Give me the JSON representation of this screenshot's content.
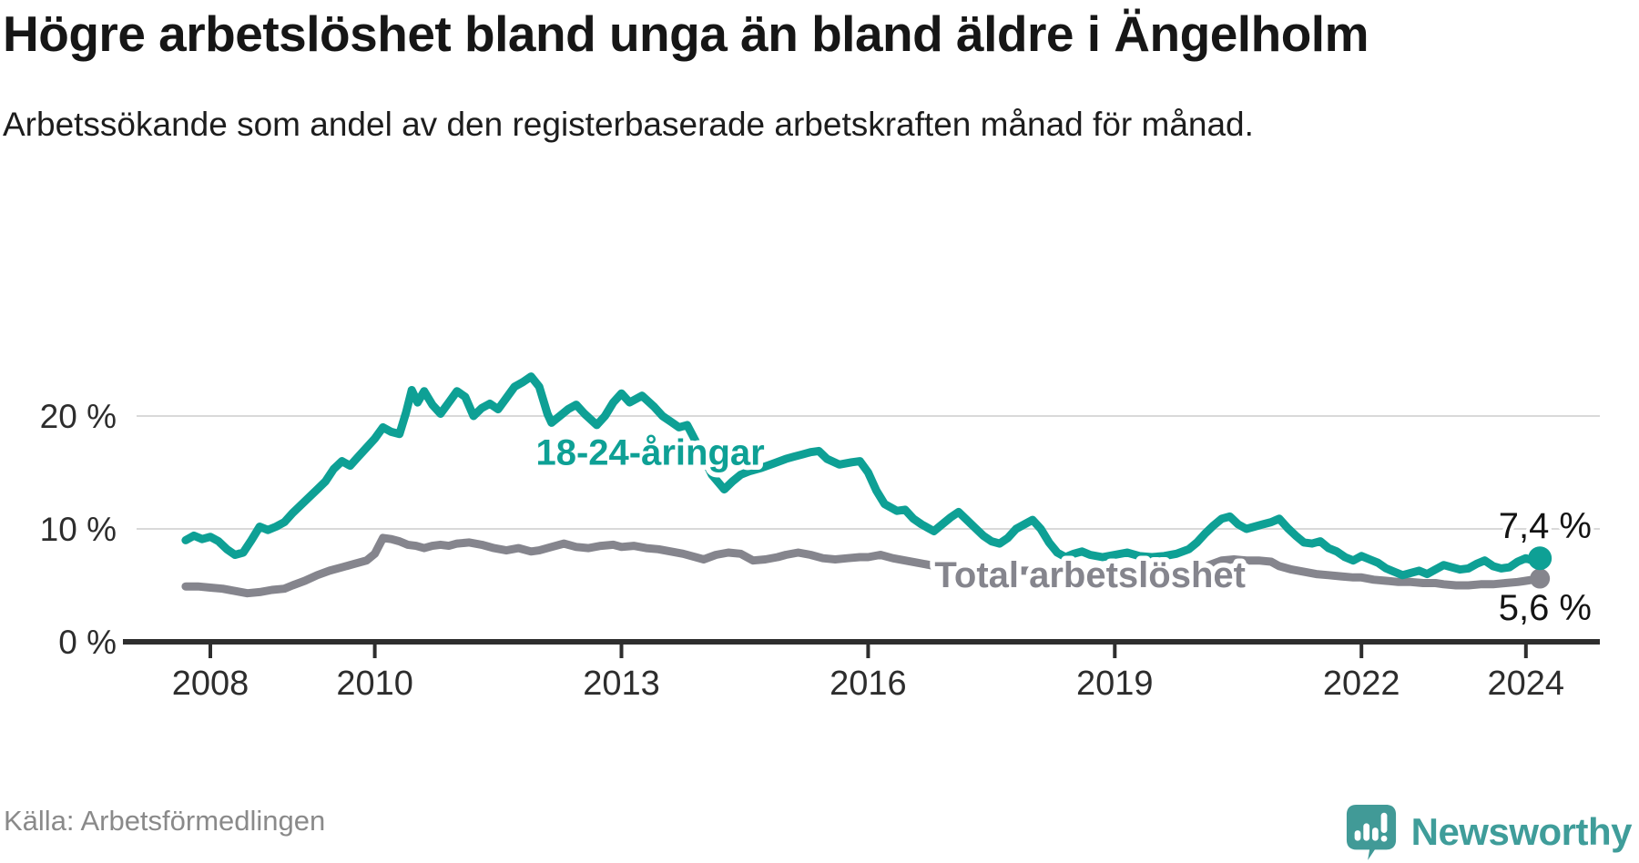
{
  "chart_data": {
    "type": "line",
    "title": "Högre arbetslöshet bland unga än bland äldre i Ängelholm",
    "subtitle": "Arbetssökande som andel av den registerbaserade arbetskraften månad för månad.",
    "source": "Källa: Arbetsförmedlingen",
    "unit": "%",
    "grid": true,
    "legend_position": "inline-labels",
    "xlim": [
      2007.6,
      2024.9
    ],
    "ylim": [
      0,
      24
    ],
    "x_axis": {
      "ticks": [
        {
          "value": 2008,
          "label": "2008"
        },
        {
          "value": 2010,
          "label": "2010"
        },
        {
          "value": 2013,
          "label": "2013"
        },
        {
          "value": 2016,
          "label": "2016"
        },
        {
          "value": 2019,
          "label": "2019"
        },
        {
          "value": 2022,
          "label": "2022"
        },
        {
          "value": 2024,
          "label": "2024"
        }
      ]
    },
    "y_axis": {
      "ticks": [
        {
          "value": 0,
          "label": "0 %"
        },
        {
          "value": 10,
          "label": "10 %"
        },
        {
          "value": 20,
          "label": "20 %"
        }
      ]
    },
    "series": [
      {
        "key": "young",
        "name": "18-24-åringar",
        "color": "#0ea095",
        "end_label": "7,4 %",
        "end_value": 7.4,
        "points": [
          [
            2007.7,
            9.0
          ],
          [
            2007.8,
            9.4
          ],
          [
            2007.9,
            9.1
          ],
          [
            2008.0,
            9.3
          ],
          [
            2008.1,
            8.9
          ],
          [
            2008.2,
            8.2
          ],
          [
            2008.3,
            7.7
          ],
          [
            2008.4,
            7.9
          ],
          [
            2008.5,
            9.0
          ],
          [
            2008.6,
            10.2
          ],
          [
            2008.7,
            9.9
          ],
          [
            2008.8,
            10.2
          ],
          [
            2008.9,
            10.6
          ],
          [
            2009.0,
            11.4
          ],
          [
            2009.1,
            12.1
          ],
          [
            2009.2,
            12.8
          ],
          [
            2009.3,
            13.5
          ],
          [
            2009.4,
            14.2
          ],
          [
            2009.5,
            15.3
          ],
          [
            2009.6,
            16.0
          ],
          [
            2009.7,
            15.6
          ],
          [
            2009.8,
            16.4
          ],
          [
            2009.9,
            17.2
          ],
          [
            2010.0,
            18.0
          ],
          [
            2010.1,
            19.0
          ],
          [
            2010.2,
            18.6
          ],
          [
            2010.3,
            18.4
          ],
          [
            2010.38,
            20.3
          ],
          [
            2010.45,
            22.3
          ],
          [
            2010.52,
            21.2
          ],
          [
            2010.6,
            22.2
          ],
          [
            2010.7,
            21.0
          ],
          [
            2010.8,
            20.2
          ],
          [
            2010.9,
            21.2
          ],
          [
            2011.0,
            22.2
          ],
          [
            2011.1,
            21.7
          ],
          [
            2011.2,
            20.0
          ],
          [
            2011.3,
            20.7
          ],
          [
            2011.4,
            21.1
          ],
          [
            2011.5,
            20.6
          ],
          [
            2011.6,
            21.6
          ],
          [
            2011.7,
            22.6
          ],
          [
            2011.8,
            23.0
          ],
          [
            2011.9,
            23.5
          ],
          [
            2012.0,
            22.6
          ],
          [
            2012.1,
            20.2
          ],
          [
            2012.15,
            19.4
          ],
          [
            2012.25,
            20.0
          ],
          [
            2012.35,
            20.6
          ],
          [
            2012.45,
            21.0
          ],
          [
            2012.55,
            20.2
          ],
          [
            2012.7,
            19.2
          ],
          [
            2012.8,
            20.0
          ],
          [
            2012.9,
            21.2
          ],
          [
            2013.0,
            22.0
          ],
          [
            2013.1,
            21.2
          ],
          [
            2013.25,
            21.8
          ],
          [
            2013.4,
            20.8
          ],
          [
            2013.5,
            20.0
          ],
          [
            2013.6,
            19.5
          ],
          [
            2013.7,
            19.0
          ],
          [
            2013.8,
            19.2
          ],
          [
            2013.9,
            17.8
          ],
          [
            2014.0,
            16.3
          ],
          [
            2014.1,
            14.8
          ],
          [
            2014.25,
            13.5
          ],
          [
            2014.35,
            14.2
          ],
          [
            2014.45,
            14.8
          ],
          [
            2014.55,
            15.1
          ],
          [
            2014.7,
            15.4
          ],
          [
            2014.85,
            15.8
          ],
          [
            2015.0,
            16.2
          ],
          [
            2015.1,
            16.4
          ],
          [
            2015.2,
            16.6
          ],
          [
            2015.3,
            16.8
          ],
          [
            2015.4,
            16.9
          ],
          [
            2015.5,
            16.2
          ],
          [
            2015.65,
            15.7
          ],
          [
            2015.8,
            15.9
          ],
          [
            2015.9,
            16.0
          ],
          [
            2016.0,
            15.0
          ],
          [
            2016.1,
            13.4
          ],
          [
            2016.2,
            12.2
          ],
          [
            2016.35,
            11.6
          ],
          [
            2016.45,
            11.7
          ],
          [
            2016.55,
            10.9
          ],
          [
            2016.65,
            10.4
          ],
          [
            2016.8,
            9.8
          ],
          [
            2016.9,
            10.4
          ],
          [
            2017.0,
            11.0
          ],
          [
            2017.1,
            11.5
          ],
          [
            2017.2,
            10.8
          ],
          [
            2017.3,
            10.1
          ],
          [
            2017.4,
            9.4
          ],
          [
            2017.5,
            8.9
          ],
          [
            2017.6,
            8.7
          ],
          [
            2017.7,
            9.2
          ],
          [
            2017.8,
            10.0
          ],
          [
            2017.9,
            10.4
          ],
          [
            2018.0,
            10.8
          ],
          [
            2018.1,
            10.0
          ],
          [
            2018.2,
            8.8
          ],
          [
            2018.3,
            7.9
          ],
          [
            2018.4,
            7.5
          ],
          [
            2018.5,
            7.8
          ],
          [
            2018.6,
            8.0
          ],
          [
            2018.7,
            7.7
          ],
          [
            2018.85,
            7.5
          ],
          [
            2019.0,
            7.7
          ],
          [
            2019.15,
            7.9
          ],
          [
            2019.3,
            7.6
          ],
          [
            2019.45,
            7.5
          ],
          [
            2019.6,
            7.6
          ],
          [
            2019.75,
            7.8
          ],
          [
            2019.9,
            8.2
          ],
          [
            2020.0,
            8.8
          ],
          [
            2020.1,
            9.6
          ],
          [
            2020.2,
            10.3
          ],
          [
            2020.3,
            10.9
          ],
          [
            2020.4,
            11.1
          ],
          [
            2020.5,
            10.4
          ],
          [
            2020.6,
            10.0
          ],
          [
            2020.7,
            10.2
          ],
          [
            2020.8,
            10.4
          ],
          [
            2020.9,
            10.6
          ],
          [
            2021.0,
            10.9
          ],
          [
            2021.1,
            10.1
          ],
          [
            2021.2,
            9.4
          ],
          [
            2021.3,
            8.8
          ],
          [
            2021.4,
            8.7
          ],
          [
            2021.5,
            8.9
          ],
          [
            2021.6,
            8.3
          ],
          [
            2021.7,
            8.0
          ],
          [
            2021.8,
            7.5
          ],
          [
            2021.9,
            7.2
          ],
          [
            2022.0,
            7.6
          ],
          [
            2022.1,
            7.3
          ],
          [
            2022.2,
            7.0
          ],
          [
            2022.3,
            6.5
          ],
          [
            2022.4,
            6.2
          ],
          [
            2022.5,
            5.9
          ],
          [
            2022.6,
            6.1
          ],
          [
            2022.7,
            6.3
          ],
          [
            2022.8,
            6.0
          ],
          [
            2022.9,
            6.4
          ],
          [
            2023.0,
            6.8
          ],
          [
            2023.1,
            6.6
          ],
          [
            2023.2,
            6.4
          ],
          [
            2023.3,
            6.5
          ],
          [
            2023.4,
            6.9
          ],
          [
            2023.5,
            7.2
          ],
          [
            2023.6,
            6.7
          ],
          [
            2023.7,
            6.5
          ],
          [
            2023.8,
            6.6
          ],
          [
            2023.9,
            7.1
          ],
          [
            2024.0,
            7.4
          ],
          [
            2024.08,
            7.2
          ],
          [
            2024.17,
            7.4
          ]
        ]
      },
      {
        "key": "total",
        "name": "Total arbetslöshet",
        "color": "#85858d",
        "end_label": "5,6 %",
        "end_value": 5.6,
        "points": [
          [
            2007.7,
            4.9
          ],
          [
            2007.85,
            4.9
          ],
          [
            2008.0,
            4.8
          ],
          [
            2008.15,
            4.7
          ],
          [
            2008.3,
            4.5
          ],
          [
            2008.45,
            4.3
          ],
          [
            2008.6,
            4.4
          ],
          [
            2008.75,
            4.6
          ],
          [
            2008.9,
            4.7
          ],
          [
            2009.0,
            5.0
          ],
          [
            2009.15,
            5.4
          ],
          [
            2009.3,
            5.9
          ],
          [
            2009.45,
            6.3
          ],
          [
            2009.6,
            6.6
          ],
          [
            2009.75,
            6.9
          ],
          [
            2009.9,
            7.2
          ],
          [
            2010.0,
            7.8
          ],
          [
            2010.1,
            9.2
          ],
          [
            2010.2,
            9.1
          ],
          [
            2010.3,
            8.9
          ],
          [
            2010.4,
            8.6
          ],
          [
            2010.5,
            8.5
          ],
          [
            2010.6,
            8.3
          ],
          [
            2010.7,
            8.5
          ],
          [
            2010.8,
            8.6
          ],
          [
            2010.9,
            8.5
          ],
          [
            2011.0,
            8.7
          ],
          [
            2011.15,
            8.8
          ],
          [
            2011.3,
            8.6
          ],
          [
            2011.45,
            8.3
          ],
          [
            2011.6,
            8.1
          ],
          [
            2011.75,
            8.3
          ],
          [
            2011.9,
            8.0
          ],
          [
            2012.0,
            8.1
          ],
          [
            2012.15,
            8.4
          ],
          [
            2012.3,
            8.7
          ],
          [
            2012.45,
            8.4
          ],
          [
            2012.6,
            8.3
          ],
          [
            2012.75,
            8.5
          ],
          [
            2012.9,
            8.6
          ],
          [
            2013.0,
            8.4
          ],
          [
            2013.15,
            8.5
          ],
          [
            2013.3,
            8.3
          ],
          [
            2013.45,
            8.2
          ],
          [
            2013.6,
            8.0
          ],
          [
            2013.75,
            7.8
          ],
          [
            2013.9,
            7.5
          ],
          [
            2014.0,
            7.3
          ],
          [
            2014.15,
            7.7
          ],
          [
            2014.3,
            7.9
          ],
          [
            2014.45,
            7.8
          ],
          [
            2014.6,
            7.2
          ],
          [
            2014.75,
            7.3
          ],
          [
            2014.9,
            7.5
          ],
          [
            2015.0,
            7.7
          ],
          [
            2015.15,
            7.9
          ],
          [
            2015.3,
            7.7
          ],
          [
            2015.45,
            7.4
          ],
          [
            2015.6,
            7.3
          ],
          [
            2015.75,
            7.4
          ],
          [
            2015.9,
            7.5
          ],
          [
            2016.0,
            7.5
          ],
          [
            2016.15,
            7.7
          ],
          [
            2016.3,
            7.4
          ],
          [
            2016.45,
            7.2
          ],
          [
            2016.6,
            7.0
          ],
          [
            2016.75,
            6.8
          ],
          [
            2016.9,
            6.6
          ],
          [
            2017.0,
            6.5
          ],
          [
            2017.2,
            6.4
          ],
          [
            2017.4,
            6.3
          ],
          [
            2017.6,
            6.2
          ],
          [
            2017.8,
            6.3
          ],
          [
            2018.0,
            6.3
          ],
          [
            2018.2,
            6.1
          ],
          [
            2018.4,
            6.0
          ],
          [
            2018.6,
            5.9
          ],
          [
            2018.8,
            5.7
          ],
          [
            2019.0,
            5.6
          ],
          [
            2019.2,
            5.6
          ],
          [
            2019.4,
            5.7
          ],
          [
            2019.6,
            5.8
          ],
          [
            2019.8,
            5.9
          ],
          [
            2020.0,
            6.2
          ],
          [
            2020.15,
            6.8
          ],
          [
            2020.3,
            7.2
          ],
          [
            2020.45,
            7.3
          ],
          [
            2020.6,
            7.2
          ],
          [
            2020.75,
            7.2
          ],
          [
            2020.9,
            7.1
          ],
          [
            2021.0,
            6.7
          ],
          [
            2021.15,
            6.4
          ],
          [
            2021.3,
            6.2
          ],
          [
            2021.45,
            6.0
          ],
          [
            2021.6,
            5.9
          ],
          [
            2021.75,
            5.8
          ],
          [
            2021.9,
            5.7
          ],
          [
            2022.0,
            5.7
          ],
          [
            2022.15,
            5.5
          ],
          [
            2022.3,
            5.4
          ],
          [
            2022.45,
            5.3
          ],
          [
            2022.6,
            5.3
          ],
          [
            2022.75,
            5.2
          ],
          [
            2022.9,
            5.2
          ],
          [
            2023.0,
            5.1
          ],
          [
            2023.15,
            5.0
          ],
          [
            2023.3,
            5.0
          ],
          [
            2023.45,
            5.1
          ],
          [
            2023.6,
            5.1
          ],
          [
            2023.75,
            5.2
          ],
          [
            2023.9,
            5.3
          ],
          [
            2024.0,
            5.4
          ],
          [
            2024.17,
            5.6
          ]
        ]
      }
    ],
    "series_labels": [
      {
        "key": "young",
        "text": "18-24-åringar",
        "x": 2013.35,
        "y": 16.8,
        "color": "#0ea095"
      },
      {
        "key": "total",
        "text": "Total arbetslöshet",
        "x": 2018.7,
        "y": 5.95,
        "color": "#85858d"
      }
    ]
  },
  "footer": {
    "brand": "Newsworthy"
  },
  "colors": {
    "young": "#0ea095",
    "total": "#85858d",
    "grid": "#d9d9d9",
    "axis": "#2e2e2e",
    "brand": "#3f9d9a"
  }
}
